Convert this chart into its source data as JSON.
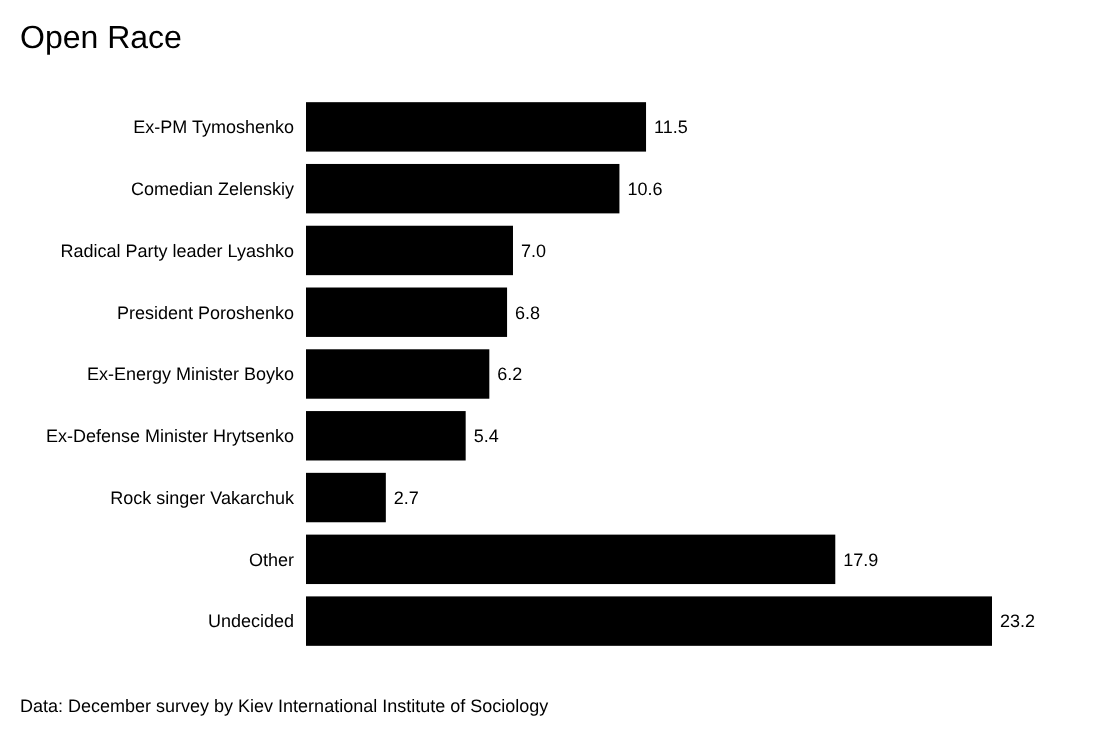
{
  "chart_data": {
    "type": "bar",
    "orientation": "horizontal",
    "title": "Open Race",
    "categories": [
      "Ex-PM Tymoshenko",
      "Comedian Zelenskiy",
      "Radical Party leader Lyashko",
      "President Poroshenko",
      "Ex-Energy Minister Boyko",
      "Ex-Defense Minister Hrytsenko",
      "Rock singer Vakarchuk",
      "Other",
      "Undecided"
    ],
    "values": [
      11.5,
      10.6,
      7.0,
      6.8,
      6.2,
      5.4,
      2.7,
      17.9,
      23.2
    ],
    "value_labels": [
      "11.5",
      "10.6",
      "7.0",
      "6.8",
      "6.2",
      "5.4",
      "2.7",
      "17.9",
      "23.2"
    ],
    "color": "#000000",
    "annotations": [
      "Data: December survey by Kiev International Institute of Sociology"
    ]
  }
}
